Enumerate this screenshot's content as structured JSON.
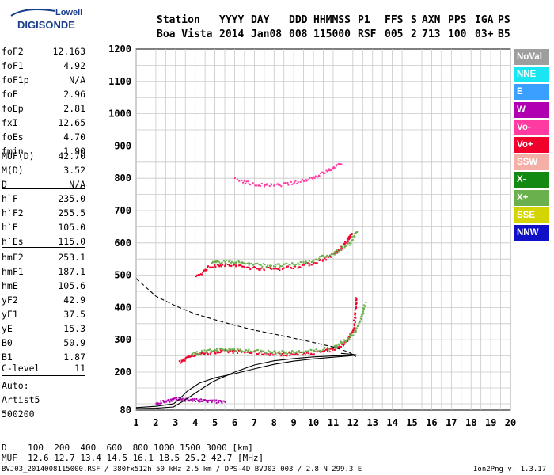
{
  "logo": {
    "brand_top": "Lowell",
    "brand_bottom": "DIGISONDE"
  },
  "header": {
    "columns": [
      {
        "label": "Station",
        "value": "Boa Vista",
        "x": 198
      },
      {
        "label": "YYYY",
        "value": "2014",
        "x": 277
      },
      {
        "label": "DAY",
        "value": "Jan08",
        "x": 317
      },
      {
        "label": "DDD",
        "value": "008",
        "x": 365
      },
      {
        "label": "HHMMSS",
        "value": "115000",
        "x": 396
      },
      {
        "label": "P1",
        "value": "RSF",
        "x": 452
      },
      {
        "label": "FFS",
        "value": "005",
        "x": 486
      },
      {
        "label": "S",
        "value": "2",
        "x": 519
      },
      {
        "label": "AXN",
        "value": "713",
        "x": 533
      },
      {
        "label": "PPS",
        "value": "100",
        "x": 566
      },
      {
        "label": "IGA",
        "value": "03+",
        "x": 600
      },
      {
        "label": "PS",
        "value": "B5",
        "x": 629
      }
    ]
  },
  "params": {
    "group1": [
      {
        "name": "foF2",
        "value": "12.163"
      },
      {
        "name": "foF1",
        "value": "4.92"
      },
      {
        "name": "foF1p",
        "value": "N/A"
      },
      {
        "name": "foE",
        "value": "2.96"
      },
      {
        "name": "foEp",
        "value": "2.81"
      },
      {
        "name": "fxI",
        "value": "12.65"
      },
      {
        "name": "foEs",
        "value": "4.70"
      },
      {
        "name": "fmin",
        "value": "1.90"
      }
    ],
    "group2": [
      {
        "name": "MUF(D)",
        "value": "42.70"
      },
      {
        "name": "M(D)",
        "value": "3.52"
      },
      {
        "name": "D",
        "value": "N/A"
      }
    ],
    "group3": [
      {
        "name": "h`F",
        "value": "235.0"
      },
      {
        "name": "h`F2",
        "value": "255.5"
      },
      {
        "name": "h`E",
        "value": "105.0"
      },
      {
        "name": "h`Es",
        "value": "115.0"
      }
    ],
    "group4": [
      {
        "name": "hmF2",
        "value": "253.1"
      },
      {
        "name": "hmF1",
        "value": "187.1"
      },
      {
        "name": "hmE",
        "value": "105.6"
      },
      {
        "name": "yF2",
        "value": "42.9"
      },
      {
        "name": "yF1",
        "value": "37.5"
      },
      {
        "name": "yE",
        "value": "15.3"
      },
      {
        "name": "B0",
        "value": "50.9"
      },
      {
        "name": "B1",
        "value": "1.87"
      }
    ],
    "group5": [
      {
        "name": "C-level",
        "value": "11"
      }
    ],
    "auto_lines": [
      "Auto:",
      "Artist5",
      "500200"
    ]
  },
  "legend": [
    {
      "label": "NoVal",
      "color": "#9e9e9e"
    },
    {
      "label": "NNE",
      "color": "#19e6f0"
    },
    {
      "label": "E",
      "color": "#3aa0ff"
    },
    {
      "label": "W",
      "color": "#b000b0"
    },
    {
      "label": "Vo-",
      "color": "#ff3aa0"
    },
    {
      "label": "Vo+",
      "color": "#f0002a"
    },
    {
      "label": "SSW",
      "color": "#f4b0a6"
    },
    {
      "label": "X-",
      "color": "#128a12"
    },
    {
      "label": "X+",
      "color": "#6ab04c"
    },
    {
      "label": "SSE",
      "color": "#d4d400"
    },
    {
      "label": "NNW",
      "color": "#1010c8"
    }
  ],
  "footer": {
    "distance_line": "D    100  200  400  600  800 1000 1500 3000 [km]",
    "muf_line": "MUF  12.6 12.7 13.4 14.5 16.1 18.5 25.2 42.7 [MHz]",
    "file_info": "BVJ03_2014008115000.RSF / 380fx512h 50 kHz 2.5 km / DPS-4D BVJ03 003 / 2.8 N 299.3 E",
    "version": "Ion2Png v. 1.3.17"
  },
  "chart_data": {
    "type": "scatter",
    "title": "",
    "xlabel": "",
    "ylabel": "",
    "xlim": [
      1,
      20
    ],
    "ylim": [
      80,
      1200
    ],
    "x_ticks": [
      1,
      2,
      3,
      4,
      5,
      6,
      7,
      8,
      9,
      10,
      11,
      12,
      13,
      14,
      15,
      16,
      17,
      18,
      19,
      20
    ],
    "y_ticks": [
      80,
      200,
      300,
      400,
      500,
      600,
      700,
      800,
      900,
      1000,
      1100,
      1200
    ],
    "grid": true,
    "traces": [
      {
        "name": "Vo+",
        "color": "#f0002a",
        "points": [
          [
            3.2,
            232
          ],
          [
            3.6,
            250
          ],
          [
            4.0,
            258
          ],
          [
            4.6,
            262
          ],
          [
            5.2,
            266
          ],
          [
            6,
            266
          ],
          [
            7,
            262
          ],
          [
            8,
            258
          ],
          [
            9,
            258
          ],
          [
            10,
            262
          ],
          [
            10.8,
            270
          ],
          [
            11.4,
            285
          ],
          [
            11.8,
            310
          ],
          [
            12.0,
            340
          ],
          [
            12.1,
            390
          ],
          [
            12.15,
            440
          ]
        ]
      },
      {
        "name": "X+",
        "color": "#6ab04c",
        "points": [
          [
            3.8,
            258
          ],
          [
            4.4,
            266
          ],
          [
            5.2,
            272
          ],
          [
            6,
            272
          ],
          [
            7,
            268
          ],
          [
            8,
            264
          ],
          [
            9,
            264
          ],
          [
            10,
            268
          ],
          [
            11,
            280
          ],
          [
            11.6,
            300
          ],
          [
            12.1,
            330
          ],
          [
            12.4,
            370
          ],
          [
            12.6,
            420
          ]
        ]
      },
      {
        "name": "Vo+ 2nd",
        "color": "#f0002a",
        "points": [
          [
            4.0,
            495
          ],
          [
            4.6,
            525
          ],
          [
            5.2,
            535
          ],
          [
            6,
            532
          ],
          [
            7,
            524
          ],
          [
            8,
            522
          ],
          [
            9,
            528
          ],
          [
            10,
            540
          ],
          [
            10.8,
            560
          ],
          [
            11.3,
            580
          ],
          [
            11.7,
            610
          ],
          [
            11.9,
            630
          ]
        ]
      },
      {
        "name": "X+ 2nd",
        "color": "#6ab04c",
        "points": [
          [
            4.8,
            540
          ],
          [
            5.4,
            545
          ],
          [
            6.2,
            542
          ],
          [
            7,
            535
          ],
          [
            8,
            532
          ],
          [
            9,
            536
          ],
          [
            10,
            550
          ],
          [
            11,
            570
          ],
          [
            11.8,
            600
          ],
          [
            12.2,
            640
          ]
        ]
      },
      {
        "name": "Vo- 3rd",
        "color": "#ff3aa0",
        "points": [
          [
            6.0,
            800
          ],
          [
            7,
            782
          ],
          [
            8,
            780
          ],
          [
            9,
            788
          ],
          [
            10,
            805
          ],
          [
            10.8,
            828
          ],
          [
            11.4,
            850
          ]
        ]
      },
      {
        "name": "W (Es)",
        "color": "#b000b0",
        "points": [
          [
            2.0,
            105
          ],
          [
            2.6,
            112
          ],
          [
            3.0,
            118
          ],
          [
            3.6,
            115
          ],
          [
            4.2,
            112
          ],
          [
            4.8,
            110
          ],
          [
            5.5,
            108
          ]
        ]
      }
    ],
    "profile_curves": [
      {
        "name": "true-height profile",
        "style": "solid",
        "points": [
          [
            1.0,
            88
          ],
          [
            2.0,
            92
          ],
          [
            2.9,
            100
          ],
          [
            3.2,
            115
          ],
          [
            3.6,
            140
          ],
          [
            4.2,
            165
          ],
          [
            5,
            182
          ],
          [
            6,
            195
          ],
          [
            7,
            210
          ],
          [
            8,
            224
          ],
          [
            9,
            234
          ],
          [
            10,
            241
          ],
          [
            11,
            246
          ],
          [
            11.8,
            250
          ],
          [
            12.16,
            253
          ]
        ]
      },
      {
        "name": "model trace",
        "style": "dashed",
        "points": [
          [
            1.0,
            490
          ],
          [
            2,
            435
          ],
          [
            3,
            405
          ],
          [
            4,
            380
          ],
          [
            5,
            362
          ],
          [
            6,
            345
          ],
          [
            7,
            330
          ],
          [
            8,
            318
          ],
          [
            9,
            305
          ],
          [
            10,
            292
          ],
          [
            11,
            278
          ],
          [
            11.8,
            262
          ],
          [
            12.1,
            250
          ],
          [
            12.16,
            248
          ]
        ]
      },
      {
        "name": "lower profile",
        "style": "solid",
        "points": [
          [
            1.0,
            85
          ],
          [
            2.0,
            86
          ],
          [
            2.9,
            90
          ],
          [
            3.3,
            105
          ],
          [
            3.8,
            125
          ],
          [
            4.4,
            150
          ],
          [
            4.9,
            170
          ],
          [
            6,
            200
          ],
          [
            7,
            222
          ],
          [
            8,
            235
          ],
          [
            9,
            242
          ],
          [
            10,
            247
          ],
          [
            11,
            250
          ],
          [
            12.0,
            252
          ],
          [
            12.2,
            253
          ],
          [
            12.0,
            255
          ],
          [
            11.4,
            258
          ]
        ]
      }
    ]
  }
}
